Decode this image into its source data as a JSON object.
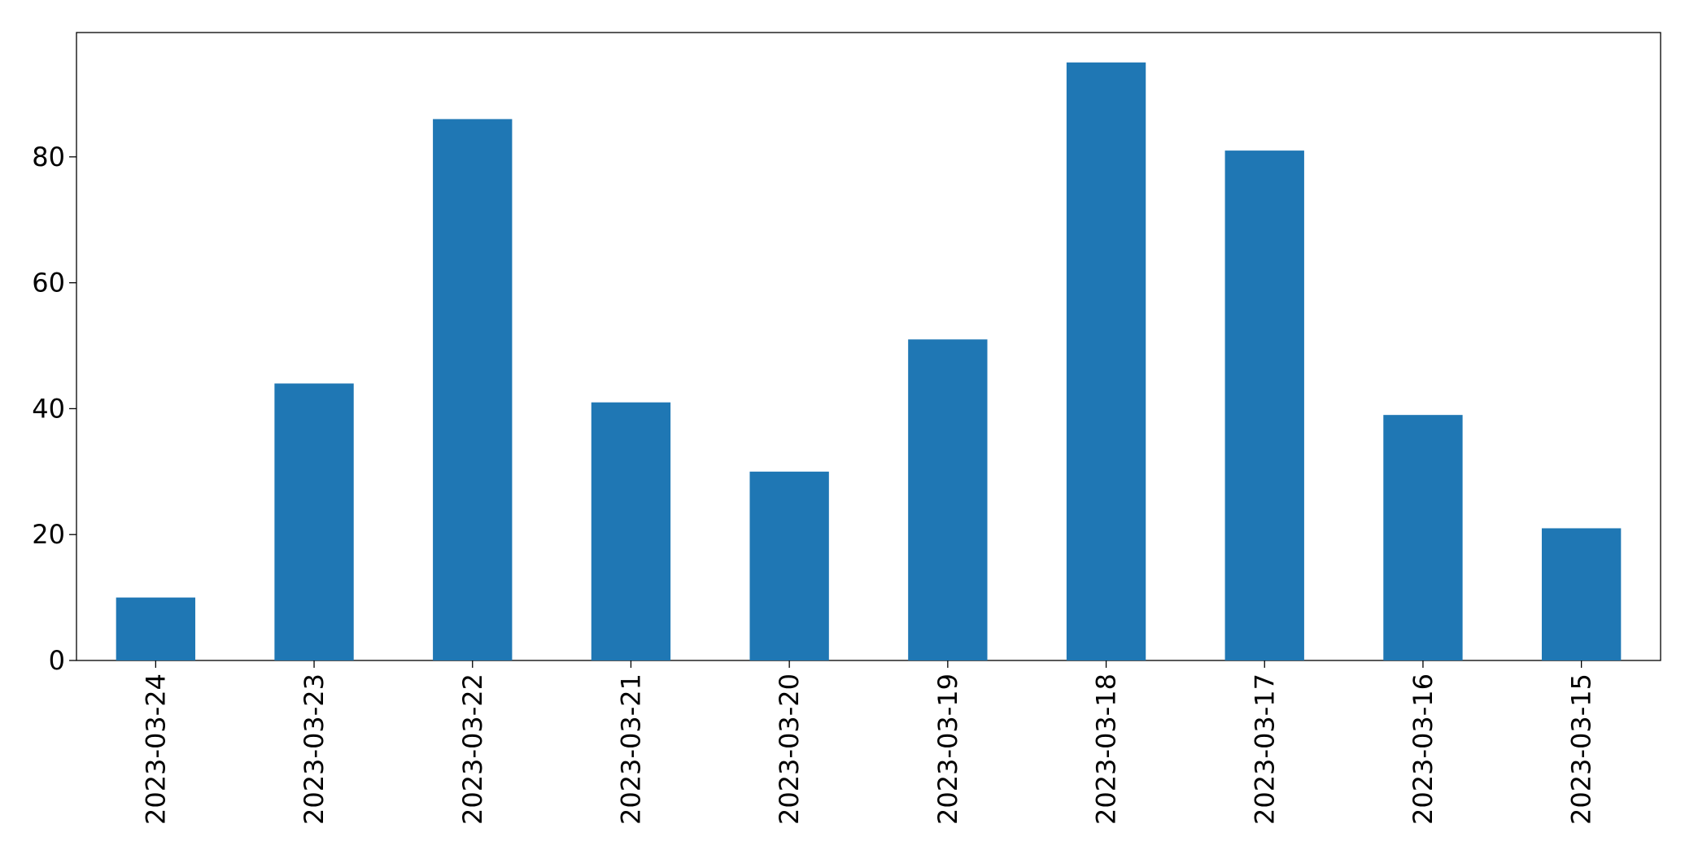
{
  "chart_data": {
    "type": "bar",
    "categories": [
      "2023-03-24",
      "2023-03-23",
      "2023-03-22",
      "2023-03-21",
      "2023-03-20",
      "2023-03-19",
      "2023-03-18",
      "2023-03-17",
      "2023-03-16",
      "2023-03-15"
    ],
    "values": [
      10,
      44,
      86,
      41,
      30,
      51,
      95,
      81,
      39,
      21
    ],
    "color": "#1f77b4",
    "ylim": [
      0,
      99.75
    ],
    "yticks": [
      0,
      20,
      40,
      60,
      80
    ],
    "grid": false
  }
}
